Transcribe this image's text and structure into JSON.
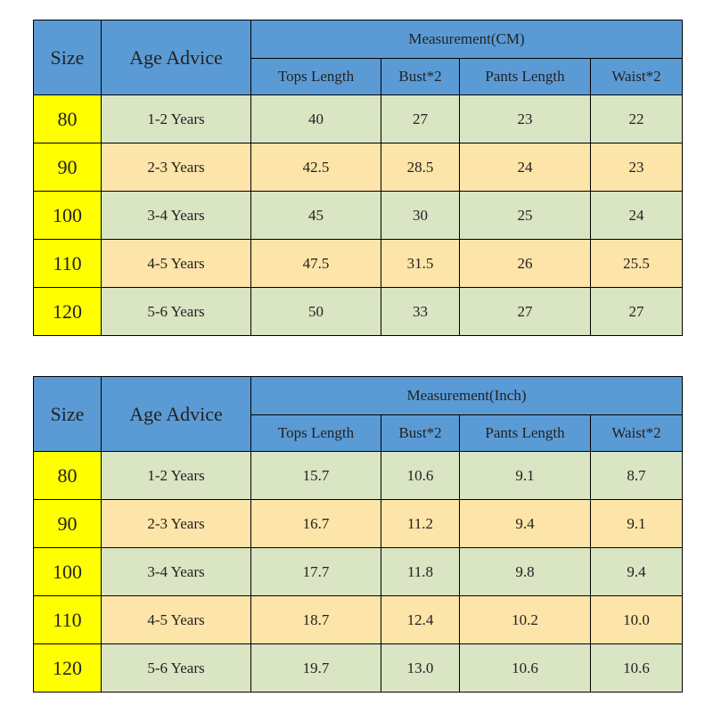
{
  "tables": [
    {
      "size_header": "Size",
      "age_header": "Age Advice",
      "group_header": "Measurement(CM)",
      "columns": [
        "Tops Length",
        "Bust*2",
        "Pants Length",
        "Waist*2"
      ],
      "rows": [
        [
          "80",
          "1-2 Years",
          "40",
          "27",
          "23",
          "22"
        ],
        [
          "90",
          "2-3 Years",
          "42.5",
          "28.5",
          "24",
          "23"
        ],
        [
          "100",
          "3-4 Years",
          "45",
          "30",
          "25",
          "24"
        ],
        [
          "110",
          "4-5 Years",
          "47.5",
          "31.5",
          "26",
          "25.5"
        ],
        [
          "120",
          "5-6 Years",
          "50",
          "33",
          "27",
          "27"
        ]
      ]
    },
    {
      "size_header": "Size",
      "age_header": "Age Advice",
      "group_header": "Measurement(Inch)",
      "columns": [
        "Tops Length",
        "Bust*2",
        "Pants Length",
        "Waist*2"
      ],
      "rows": [
        [
          "80",
          "1-2 Years",
          "15.7",
          "10.6",
          "9.1",
          "8.7"
        ],
        [
          "90",
          "2-3 Years",
          "16.7",
          "11.2",
          "9.4",
          "9.1"
        ],
        [
          "100",
          "3-4 Years",
          "17.7",
          "11.8",
          "9.8",
          "9.4"
        ],
        [
          "110",
          "4-5 Years",
          "18.7",
          "12.4",
          "10.2",
          "10.0"
        ],
        [
          "120",
          "5-6 Years",
          "19.7",
          "13.0",
          "10.6",
          "10.6"
        ]
      ]
    }
  ]
}
